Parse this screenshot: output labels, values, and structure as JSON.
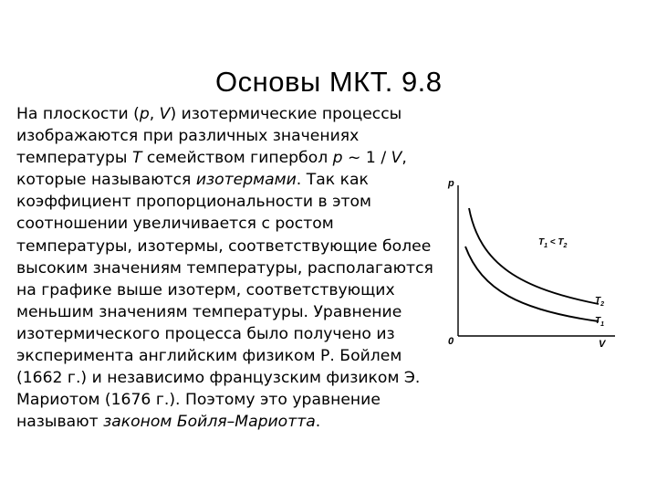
{
  "slide": {
    "title": "Основы МКТ. 9.8"
  },
  "paragraph": {
    "l1": {
      "a": "На плоскости (",
      "b": "p",
      "c": ", ",
      "d": "V",
      "e": ") изотермические процессы"
    },
    "l2": "изображаются при различных значениях",
    "l3": {
      "a": "температуры ",
      "b": "T",
      "c": " семейством гипербол ",
      "d": "p",
      "e": " ~ 1 / ",
      "f": "V",
      "g": ","
    },
    "l4": {
      "a": "которые называются ",
      "b": "изотермами",
      "c": ". Так как"
    },
    "l5": "коэффициент пропорциональности в этом",
    "l6": "соотношении увеличивается с ростом",
    "l7": "температуры, изотермы, соответствующие более",
    "l8": "высоким значениям температуры, располагаются",
    "l9": "на графике выше изотерм, соответствующих",
    "l10": "меньшим значениям температуры. Уравнение",
    "l11": "изотермического процесса было получено из",
    "l12": "эксперимента английским физиком Р. Бойлем",
    "l13": "(1662 г.) и независимо французским физиком Э.",
    "l14": "Мариотом (1676 г.). Поэтому это уравнение",
    "l15": {
      "a": "называют ",
      "b": "законом Бойля–Мариотта",
      "c": "."
    }
  },
  "figure": {
    "axis_y": "p",
    "axis_x": "V",
    "origin": "0",
    "relation": {
      "t1": "T",
      "t1_sub": "1",
      "lt": " < ",
      "t2": "T",
      "t2_sub": "2"
    },
    "curve_upper": {
      "letter": "T",
      "sub": "2"
    },
    "curve_lower": {
      "letter": "T",
      "sub": "1"
    }
  }
}
